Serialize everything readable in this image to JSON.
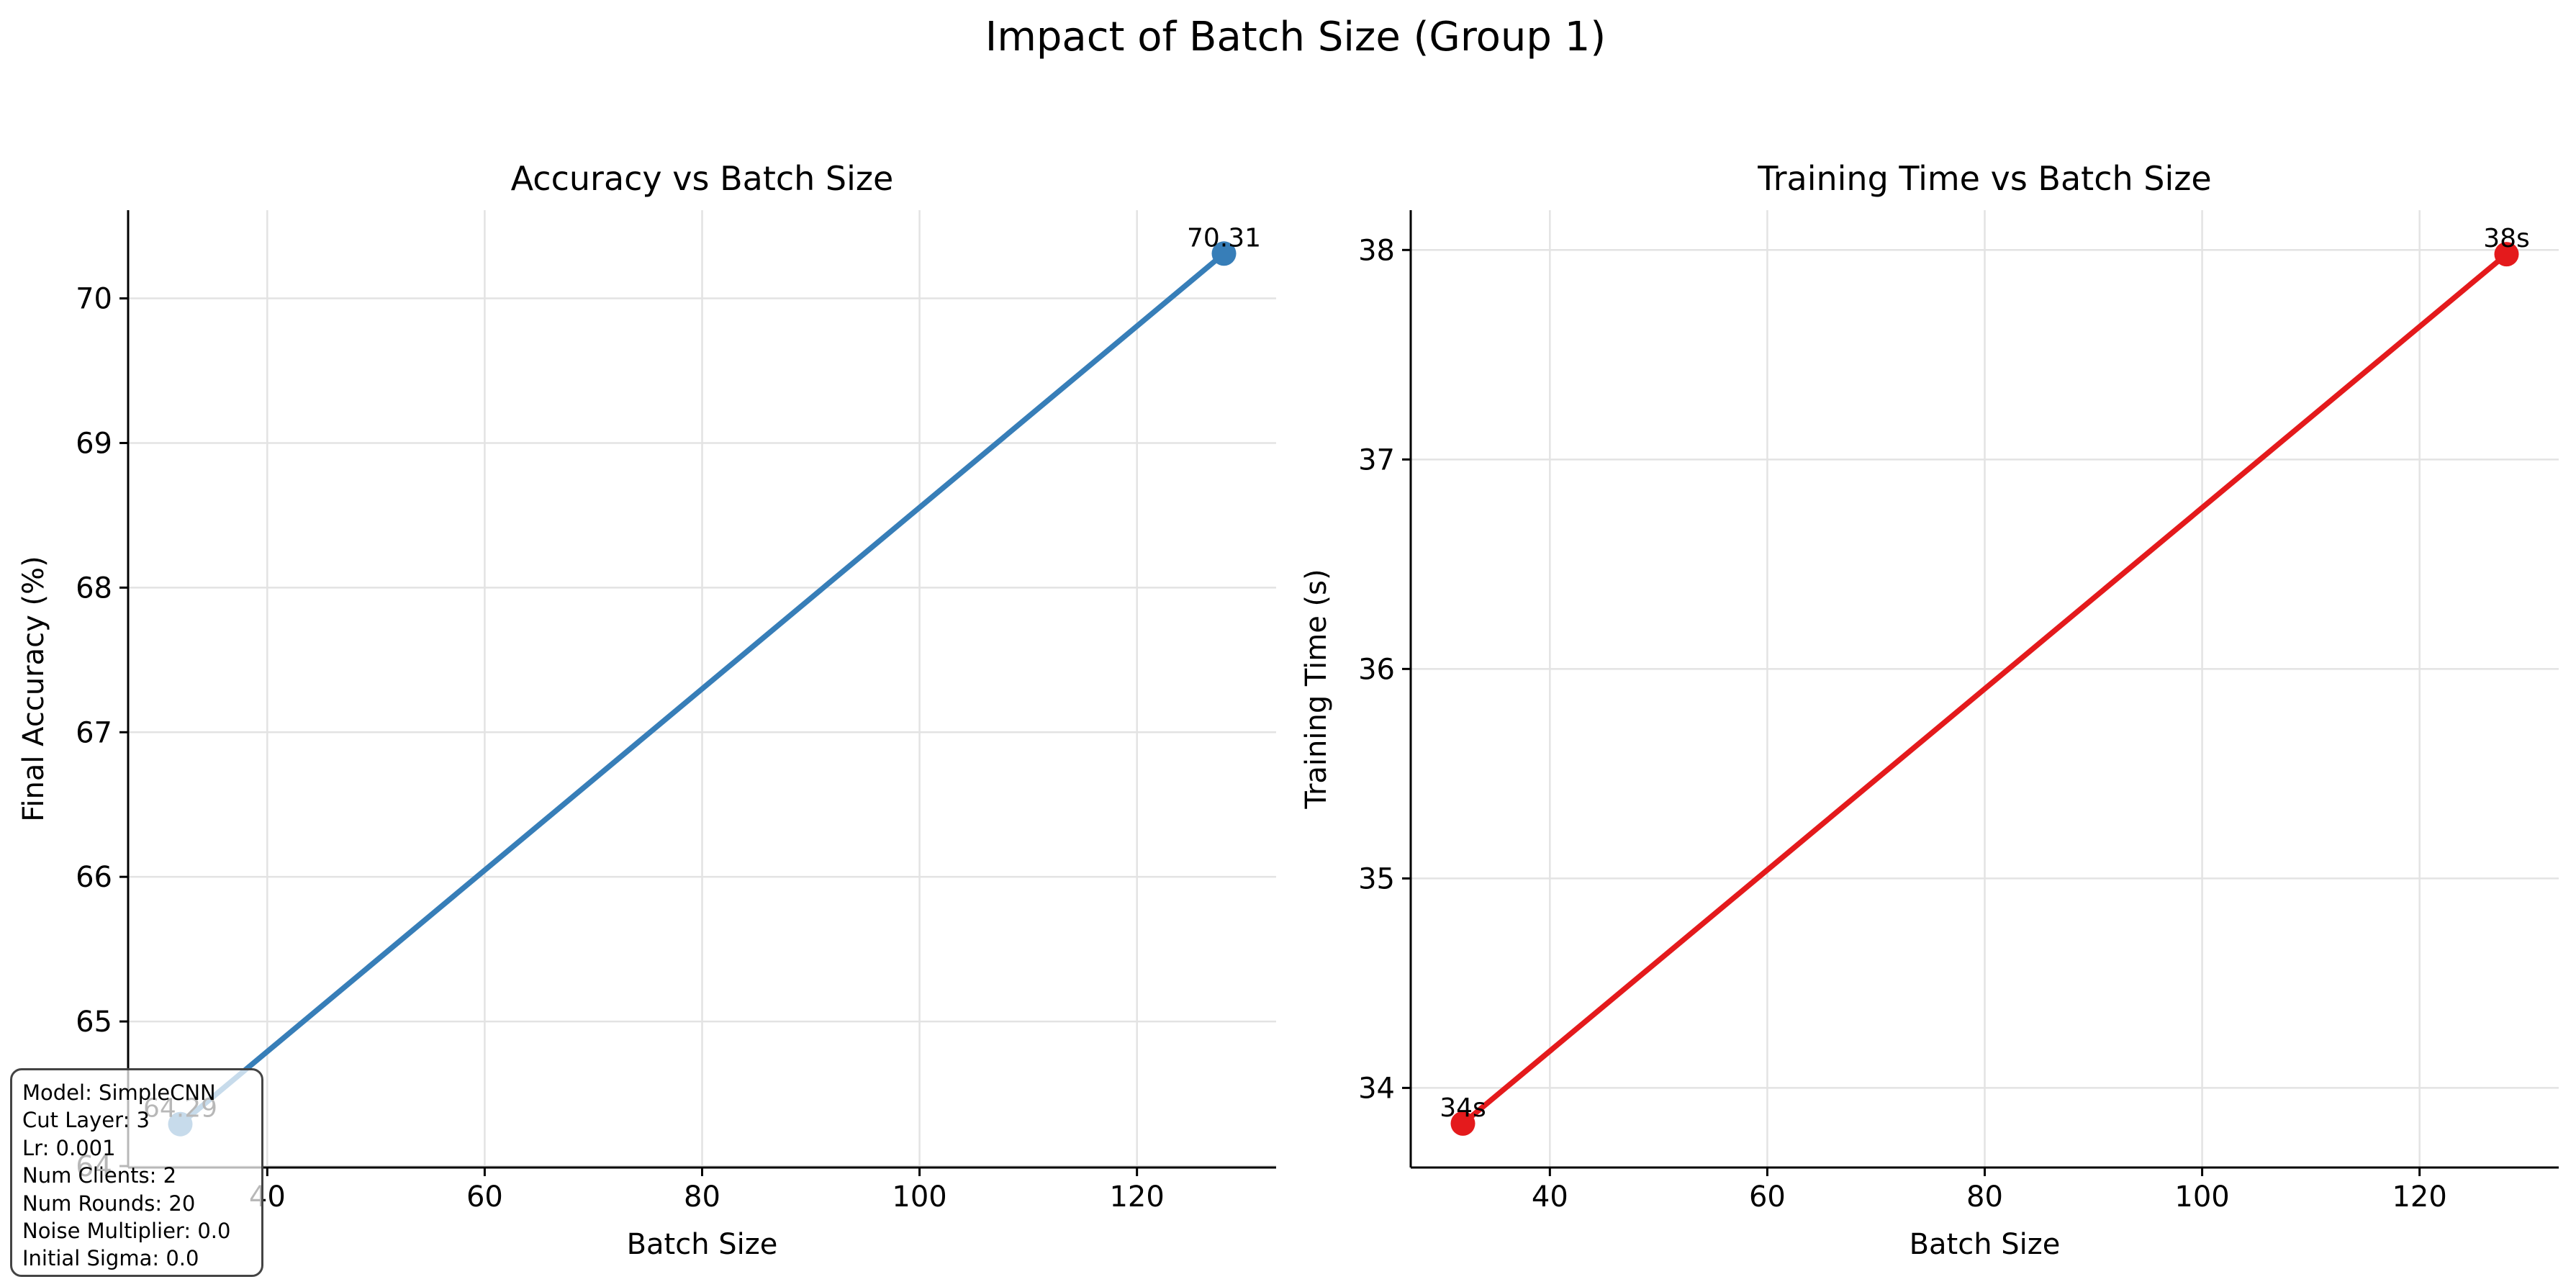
{
  "figure_title": "Impact of Batch Size (Group 1)",
  "info_box": {
    "lines": [
      "Model: SimpleCNN",
      "Cut Layer: 3",
      "Lr: 0.001",
      "Num Clients: 2",
      "Num Rounds: 20",
      "Noise Multiplier: 0.0",
      "Initial Sigma: 0.0"
    ]
  },
  "chart_data": [
    {
      "type": "line",
      "title": "Accuracy vs Batch Size",
      "xlabel": "Batch Size",
      "ylabel": "Final Accuracy (%)",
      "x": [
        32,
        128
      ],
      "series": [
        {
          "values": [
            64.29,
            70.31
          ],
          "labels": [
            "64.29",
            "70.31"
          ],
          "color": "#377eb8"
        }
      ],
      "xlim": [
        27.2,
        132.8
      ],
      "ylim": [
        63.99,
        70.61
      ],
      "xticks": [
        40,
        60,
        80,
        100,
        120
      ],
      "yticks": [
        64,
        65,
        66,
        67,
        68,
        69,
        70
      ],
      "grid": true,
      "legend": "none"
    },
    {
      "type": "line",
      "title": "Training Time vs Batch Size",
      "xlabel": "Batch Size",
      "ylabel": "Training Time (s)",
      "x": [
        32,
        128
      ],
      "series": [
        {
          "values": [
            33.83,
            37.98
          ],
          "labels": [
            "34s",
            "38s"
          ],
          "color": "#e41a1c"
        }
      ],
      "xlim": [
        27.2,
        132.8
      ],
      "ylim": [
        33.62,
        38.19
      ],
      "xticks": [
        40,
        60,
        80,
        100,
        120
      ],
      "yticks": [
        34,
        35,
        36,
        37,
        38
      ],
      "grid": true,
      "legend": "none"
    }
  ]
}
